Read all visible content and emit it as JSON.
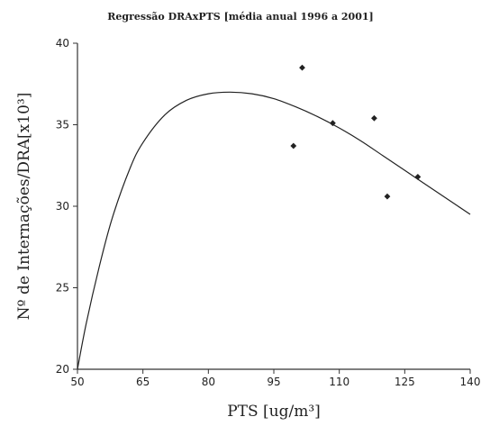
{
  "chart_data": {
    "type": "scatter",
    "title": "Regressão DRAxPTS [média anual 1996 a 2001]",
    "xlabel": "PTS [ug/m³]",
    "ylabel": "Nº de Internações/DRA[x10³]",
    "xlim": [
      50,
      140
    ],
    "ylim": [
      20,
      40
    ],
    "xticks": [
      "50",
      "65",
      "80",
      "95",
      "110",
      "125",
      "140"
    ],
    "yticks": [
      "20",
      "25",
      "30",
      "35",
      "40"
    ],
    "grid": false,
    "points": [
      {
        "x": 99.5,
        "y": 33.7
      },
      {
        "x": 101.5,
        "y": 38.5
      },
      {
        "x": 108.5,
        "y": 35.1
      },
      {
        "x": 118,
        "y": 35.4
      },
      {
        "x": 121,
        "y": 30.6
      },
      {
        "x": 128,
        "y": 31.8
      }
    ],
    "curve": {
      "x": [
        50,
        52,
        55,
        58,
        62,
        65,
        70,
        75,
        80,
        85,
        90,
        95,
        100,
        105,
        110,
        115,
        120,
        125,
        130,
        135,
        140
      ],
      "y": [
        20.0,
        22.8,
        26.3,
        29.3,
        32.3,
        33.9,
        35.6,
        36.5,
        36.9,
        37.0,
        36.9,
        36.6,
        36.1,
        35.5,
        34.8,
        34.0,
        33.1,
        32.2,
        31.3,
        30.4,
        29.5
      ]
    }
  }
}
